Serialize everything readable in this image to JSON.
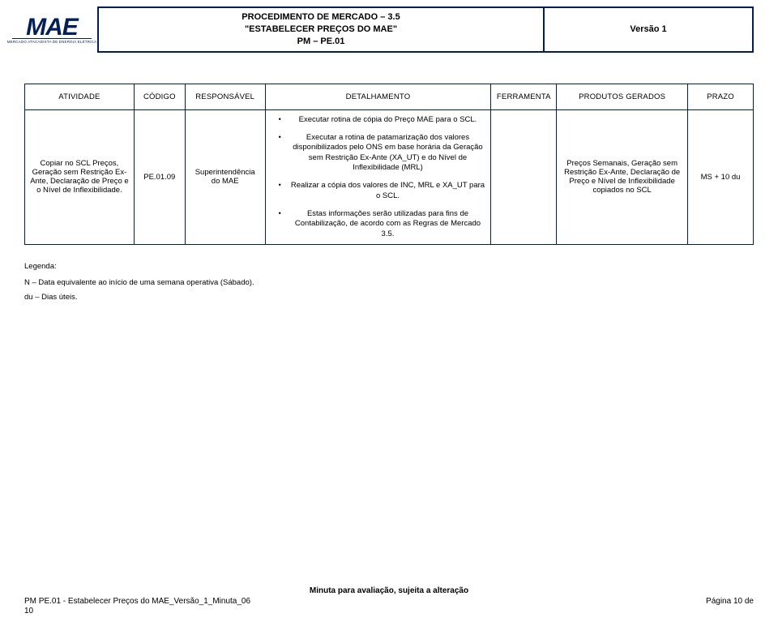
{
  "header": {
    "logo_text": "MAE",
    "logo_subtitle": "MERCADO ATACADISTA DE ENERGIA ELÉTRICA",
    "title_line1": "PROCEDIMENTO DE MERCADO – 3.5",
    "title_line2": "\"ESTABELECER PREÇOS DO MAE\"",
    "title_line3": "PM – PE.01",
    "version": "Versão 1"
  },
  "table": {
    "columns": [
      "ATIVIDADE",
      "CÓDIGO",
      "RESPONSÁVEL",
      "DETALHAMENTO",
      "FERRAMENTA",
      "PRODUTOS GERADOS",
      "PRAZO"
    ],
    "col_widths": [
      "15%",
      "7%",
      "11%",
      "31%",
      "9%",
      "18%",
      "9%"
    ],
    "row": {
      "atividade": "Copiar no SCL Preços, Geração sem Restrição Ex-Ante, Declaração de Preço e o Nível de Inflexibilidade.",
      "codigo": "PE.01.09",
      "responsavel": "Superintendência do MAE",
      "detalhamento": [
        "Executar rotina de cópia do Preço MAE para o SCL.",
        "Executar a rotina de patamarização dos valores disponibilizados pelo ONS em base horária da Geração sem Restrição Ex-Ante (XA_UT) e do Nível de Inflexibilidade (MRL)",
        "Realizar a cópia dos valores de INC, MRL e XA_UT para o SCL.",
        "Estas informações serão utilizadas para fins de Contabilização, de acordo com as Regras de Mercado 3.5."
      ],
      "ferramenta": "",
      "produtos": "Preços Semanais, Geração sem Restrição Ex-Ante, Declaração de Preço e Nível de Inflexibilidade copiados no SCL",
      "prazo": "MS + 10 du"
    }
  },
  "legenda": {
    "label": "Legenda:",
    "line1": "N – Data  equivalente ao início de uma semana operativa (Sábado).",
    "line2": "du – Dias úteis."
  },
  "footer": {
    "center": "Minuta para avaliação, sujeita a alteração",
    "left": "PM PE.01 - Estabelecer Preços do MAE_Versão_1_Minuta_06",
    "right": "Página 10 de",
    "left_continuation": "10"
  },
  "colors": {
    "border": "#001e5a",
    "logo": "#001f5b",
    "text": "#000000",
    "background": "#ffffff"
  }
}
